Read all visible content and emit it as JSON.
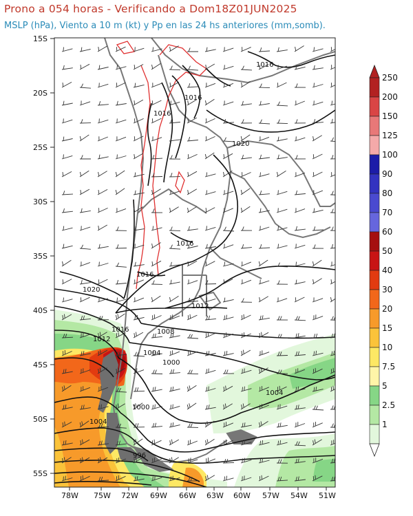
{
  "header": {
    "title": "Prono a 054 horas - Verificando a Dom18Z01JUN2025",
    "subtitle": "MSLP (hPa), Viento a 10 m (kt) y Pp en las 24 hs anteriores (mm,somb)."
  },
  "axes": {
    "lat_labels": [
      "15S",
      "20S",
      "25S",
      "30S",
      "35S",
      "40S",
      "45S",
      "50S",
      "55S"
    ],
    "lon_labels": [
      "78W",
      "75W",
      "72W",
      "69W",
      "66W",
      "63W",
      "60W",
      "57W",
      "54W",
      "51W"
    ]
  },
  "isobar_labels": [
    {
      "text": "1016",
      "id": "a"
    },
    {
      "text": "1016",
      "id": "b"
    },
    {
      "text": "1016",
      "id": "c"
    },
    {
      "text": "1020",
      "id": "d"
    },
    {
      "text": "1016",
      "id": "e"
    },
    {
      "text": "1016",
      "id": "f"
    },
    {
      "text": "1020",
      "id": "g"
    },
    {
      "text": "1012",
      "id": "h"
    },
    {
      "text": "1016",
      "id": "i"
    },
    {
      "text": "1012",
      "id": "j"
    },
    {
      "text": "1008",
      "id": "k"
    },
    {
      "text": "1004",
      "id": "l"
    },
    {
      "text": "1000",
      "id": "m"
    },
    {
      "text": "1004",
      "id": "n"
    },
    {
      "text": "1000",
      "id": "o"
    },
    {
      "text": "1004",
      "id": "p"
    },
    {
      "text": "996",
      "id": "q"
    }
  ],
  "colorbar": {
    "labels": [
      "250",
      "200",
      "150",
      "125",
      "100",
      "90",
      "80",
      "70",
      "60",
      "50",
      "40",
      "30",
      "20",
      "15",
      "10",
      "7.5",
      "5",
      "2.5",
      "1"
    ],
    "colors": [
      "#b22222",
      "#d94545",
      "#e87878",
      "#f4a9a9",
      "#1c1ca8",
      "#3333c0",
      "#4a4ad0",
      "#6666dd",
      "#a50f0f",
      "#c81414",
      "#e23b10",
      "#f2671a",
      "#f79a2a",
      "#fbc33a",
      "#fde864",
      "#fff5a8",
      "#86d686",
      "#b4e8a4",
      "#e2f7dc"
    ]
  },
  "colors": {
    "coast": "#777777",
    "isobar": "#111111",
    "terrain": "#e03030",
    "title": "#c0392b",
    "subtitle": "#2a8bb8"
  }
}
